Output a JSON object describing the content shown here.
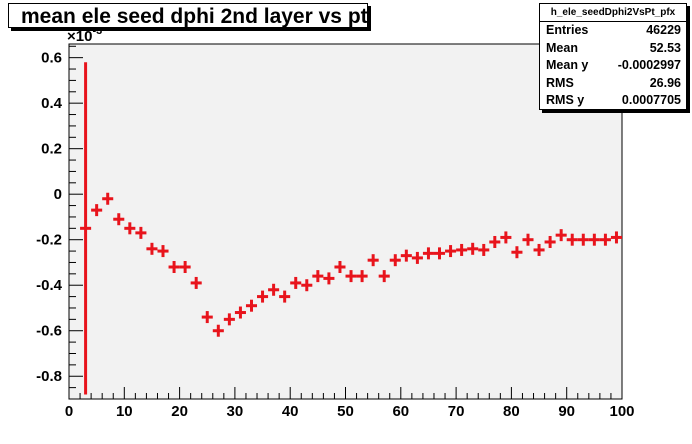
{
  "chart_data": {
    "type": "scatter",
    "title": "mean ele seed dphi 2nd layer vs pt",
    "xlabel": "",
    "ylabel": "",
    "y_exponent_label": "×10",
    "y_exponent_power": "-3",
    "xlim": [
      0,
      100
    ],
    "ylim": [
      -0.9,
      0.66
    ],
    "x_ticks": [
      "0",
      "10",
      "20",
      "30",
      "40",
      "50",
      "60",
      "70",
      "80",
      "90",
      "100"
    ],
    "y_ticks": [
      "-0.8",
      "-0.6",
      "-0.4",
      "-0.2",
      "0",
      "0.2",
      "0.4",
      "0.6"
    ],
    "grid": false,
    "marker_color": "#e8141c",
    "frame_color": "#f2f2f2",
    "series": [
      {
        "x": [
          3,
          5,
          7,
          9,
          11,
          13,
          15,
          17,
          19,
          21,
          23,
          25,
          27,
          29,
          31,
          33,
          35,
          37,
          39,
          41,
          43,
          45,
          47,
          49,
          51,
          53,
          55,
          57,
          59,
          61,
          63,
          65,
          67,
          69,
          71,
          73,
          75,
          77,
          79,
          81,
          83,
          85,
          87,
          89,
          91,
          93,
          95,
          97,
          99
        ],
        "y": [
          -0.15,
          -0.07,
          -0.02,
          -0.11,
          -0.15,
          -0.17,
          -0.24,
          -0.25,
          -0.32,
          -0.32,
          -0.39,
          -0.54,
          -0.6,
          -0.55,
          -0.52,
          -0.49,
          -0.45,
          -0.42,
          -0.45,
          -0.39,
          -0.4,
          -0.36,
          -0.37,
          -0.32,
          -0.36,
          -0.36,
          -0.29,
          -0.36,
          -0.29,
          -0.27,
          -0.28,
          -0.26,
          -0.26,
          -0.25,
          -0.245,
          -0.24,
          -0.245,
          -0.21,
          -0.19,
          -0.255,
          -0.2,
          -0.245,
          -0.21,
          -0.18,
          -0.2,
          -0.2,
          -0.2,
          -0.2,
          -0.19
        ],
        "y_err_low": [
          -0.88,
          null,
          null,
          null,
          null,
          null,
          null,
          null,
          null,
          null,
          null,
          null,
          null,
          null,
          null,
          null,
          null,
          null,
          null,
          null,
          null,
          null,
          null,
          null,
          null,
          null,
          null,
          null,
          null,
          null,
          null,
          null,
          null,
          null,
          null,
          null,
          null,
          null,
          null,
          null,
          null,
          null,
          null,
          null,
          null,
          null,
          null,
          null,
          null
        ],
        "y_err_high": [
          0.58,
          null,
          null,
          null,
          null,
          null,
          null,
          null,
          null,
          null,
          null,
          null,
          null,
          null,
          null,
          null,
          null,
          null,
          null,
          null,
          null,
          null,
          null,
          null,
          null,
          null,
          null,
          null,
          null,
          null,
          null,
          null,
          null,
          null,
          null,
          null,
          null,
          null,
          null,
          null,
          null,
          null,
          null,
          null,
          null,
          null,
          null,
          null,
          null
        ]
      }
    ]
  },
  "stats": {
    "name": "h_ele_seedDphi2VsPt_pfx",
    "rows": [
      {
        "label": "Entries",
        "value": "46229"
      },
      {
        "label": "Mean",
        "value": "52.53"
      },
      {
        "label": "Mean y",
        "value": "-0.0002997"
      },
      {
        "label": "RMS",
        "value": "26.96"
      },
      {
        "label": "RMS y",
        "value": "0.0007705"
      }
    ]
  }
}
